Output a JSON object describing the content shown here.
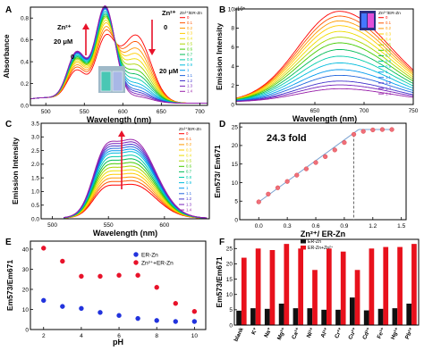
{
  "figure": {
    "panels": [
      "A",
      "B",
      "C",
      "D",
      "E",
      "F"
    ]
  },
  "legend_labels": [
    "0",
    "0.1",
    "0.2",
    "0.3",
    "0.4",
    "0.5",
    "0.6",
    "0.7",
    "0.8",
    "0.9",
    "1",
    "1.1",
    "1.2",
    "1.3",
    "1.4"
  ],
  "legend_colors": [
    "#ff0000",
    "#ff5500",
    "#ff9900",
    "#ffcc00",
    "#eedd00",
    "#aad400",
    "#44cc00",
    "#00bb55",
    "#00ccaa",
    "#00bbdd",
    "#0099ee",
    "#2266dd",
    "#4433cc",
    "#7722bb",
    "#9922aa"
  ],
  "chart_data": [
    {
      "id": "A",
      "type": "line",
      "ylabel": "Absorbance",
      "xlabel": "Wavelength (nm)",
      "xlim": [
        480,
        710
      ],
      "xticks": [
        500,
        550,
        600,
        650,
        700
      ],
      "ylim": [
        0,
        0.9
      ],
      "yticks": [
        0,
        0.2,
        0.4,
        0.6,
        0.8
      ],
      "ytick_labels": [
        "0.0",
        "0.2",
        "0.4",
        "0.6",
        "0.8"
      ],
      "legend_title": "Zn²⁺/ER-Zn",
      "annotations": [
        "Zn²⁺",
        "20 μM",
        "0",
        "Zn²⁺",
        "0",
        "20 μM"
      ],
      "peak_heights_577": [
        0.55,
        0.6,
        0.64,
        0.68,
        0.71,
        0.74,
        0.76,
        0.78,
        0.8,
        0.82,
        0.84,
        0.85,
        0.86,
        0.87,
        0.88
      ],
      "peak_heights_615": [
        0.62,
        0.56,
        0.5,
        0.45,
        0.4,
        0.35,
        0.3,
        0.26,
        0.22,
        0.18,
        0.15,
        0.12,
        0.1,
        0.08,
        0.06
      ]
    },
    {
      "id": "B",
      "type": "line",
      "ylabel": "Emission Intensity",
      "xlabel": "Wavelength (nm)",
      "exponent": "x10⁵",
      "xlim": [
        570,
        750
      ],
      "xticks": [
        650,
        700,
        750
      ],
      "ylim": [
        0,
        10
      ],
      "yticks": [
        0,
        2,
        4,
        6,
        8,
        10
      ],
      "legend_title": "Zn²⁺/ER-Zn",
      "peak_x": 675,
      "peak_intensity": [
        9.5,
        9.0,
        8.5,
        8.0,
        7.4,
        6.8,
        6.2,
        5.5,
        4.8,
        4.1,
        3.4,
        2.8,
        2.2,
        1.8,
        1.4
      ]
    },
    {
      "id": "C",
      "type": "line",
      "ylabel": "Emission Intensity",
      "xlabel": "Wavelength (nm)",
      "xlim": [
        490,
        640
      ],
      "xticks": [
        500,
        550,
        600
      ],
      "ylim": [
        0,
        3.5
      ],
      "yticks": [
        0,
        0.5,
        1.0,
        1.5,
        2.0,
        2.5,
        3.0,
        3.5
      ],
      "ytick_labels": [
        "0.0",
        "0.5",
        "1.0",
        "1.5",
        "2.0",
        "2.5",
        "3.0",
        "3.5"
      ],
      "legend_title": "Zn²⁺/ER-Zn",
      "peak_x": 572,
      "peak_intensity": [
        1.4,
        1.55,
        1.7,
        1.85,
        2.0,
        2.15,
        2.3,
        2.45,
        2.6,
        2.75,
        2.85,
        2.95,
        3.05,
        3.15,
        3.25
      ]
    },
    {
      "id": "D",
      "type": "scatter",
      "ylabel": "Em573/ Em671",
      "xlabel": "Zn²⁺/ ER-Zn",
      "xlim": [
        -0.2,
        1.55
      ],
      "xticks": [
        0.0,
        0.3,
        0.6,
        0.9,
        1.2,
        1.5
      ],
      "xtick_labels": [
        "0.0",
        "0.3",
        "0.6",
        "0.9",
        "1.2",
        "1.5"
      ],
      "ylim": [
        0,
        26
      ],
      "yticks": [
        0,
        5,
        10,
        15,
        20,
        25
      ],
      "annotation": "24.3 fold",
      "x": [
        0,
        0.1,
        0.2,
        0.3,
        0.4,
        0.5,
        0.6,
        0.7,
        0.8,
        0.9,
        1.0,
        1.1,
        1.2,
        1.3,
        1.4
      ],
      "y": [
        4.8,
        6.9,
        8.6,
        10.3,
        12.0,
        13.7,
        15.4,
        17.0,
        18.8,
        20.8,
        23.0,
        23.8,
        24.2,
        24.3,
        24.3
      ]
    },
    {
      "id": "E",
      "type": "scatter",
      "ylabel": "Em573/Em671",
      "xlabel": "pH",
      "xlim": [
        1.3,
        10.6
      ],
      "xticks": [
        2,
        4,
        6,
        8,
        10
      ],
      "ylim": [
        0,
        44
      ],
      "yticks": [
        0,
        10,
        20,
        30,
        40
      ],
      "series": [
        {
          "name": "ER-Zn",
          "color": "#2233dd",
          "x": [
            2,
            3,
            4,
            5,
            6,
            7,
            8,
            9,
            10
          ],
          "y": [
            14.5,
            11.5,
            10.5,
            8.5,
            7,
            5.5,
            4.5,
            4,
            4
          ]
        },
        {
          "name": "Zn²⁺+ER-Zn",
          "color": "#e8122a",
          "x": [
            2,
            3,
            4,
            5,
            6,
            7,
            8,
            9,
            10
          ],
          "y": [
            40.5,
            34,
            26.5,
            26.5,
            27,
            27,
            21,
            13,
            9
          ]
        }
      ]
    },
    {
      "id": "F",
      "type": "bar",
      "ylabel": "Em573/Em671",
      "ylim": [
        0,
        28
      ],
      "yticks": [
        0,
        5,
        10,
        15,
        20,
        25
      ],
      "categories": [
        "blank",
        "K⁺",
        "Na⁺",
        "Mg²⁺",
        "Ca²⁺",
        "Ni²⁺",
        "Al³⁺",
        "Cr³⁺",
        "Cu²⁺",
        "Cd²⁺",
        "Fe³⁺",
        "Hg²⁺",
        "Pb²⁺"
      ],
      "series": [
        {
          "name": "ER-Zn",
          "color": "#111111",
          "values": [
            4.7,
            5.5,
            5.3,
            7.0,
            5.5,
            5.5,
            5.0,
            5.0,
            9.0,
            4.8,
            5.3,
            5.5,
            7.0
          ]
        },
        {
          "name": "ER-Zn+Zn²⁺",
          "color": "#e8111c",
          "values": [
            22,
            25,
            24.5,
            26.5,
            25,
            18,
            25,
            24,
            18,
            25,
            25.5,
            25.5,
            26.5
          ]
        }
      ]
    }
  ]
}
